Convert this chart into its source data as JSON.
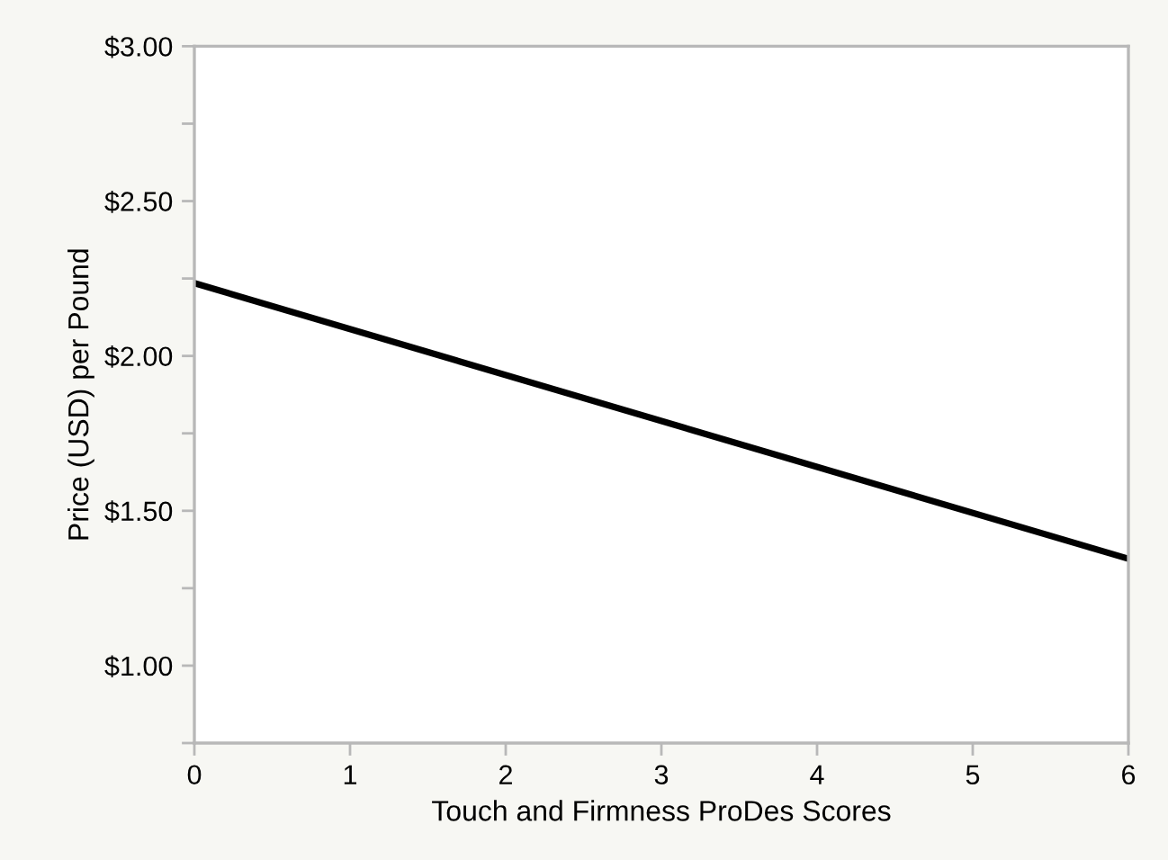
{
  "chart_data": {
    "type": "line",
    "xlabel": "Touch and Firmness ProDes Scores",
    "ylabel": "Price (USD) per Pound",
    "x": [
      0,
      6
    ],
    "series": [
      {
        "color": "#000000",
        "values": [
          2.235,
          1.345
        ]
      }
    ],
    "xlim": [
      0,
      6
    ],
    "xticks": [
      0,
      1,
      2,
      3,
      4,
      5,
      6
    ],
    "ylim": [
      0.75,
      3.0
    ],
    "yticks": [
      {
        "value": 0.75,
        "label": null
      },
      {
        "value": 1.0,
        "label": "$1.00"
      },
      {
        "value": 1.25,
        "label": null
      },
      {
        "value": 1.5,
        "label": "$1.50"
      },
      {
        "value": 1.75,
        "label": null
      },
      {
        "value": 2.0,
        "label": "$2.00"
      },
      {
        "value": 2.25,
        "label": null
      },
      {
        "value": 2.5,
        "label": "$2.50"
      },
      {
        "value": 2.75,
        "label": null
      },
      {
        "value": 3.0,
        "label": "$3.00"
      }
    ],
    "grid": false,
    "legend": false,
    "marker": "none",
    "line_style": "solid"
  }
}
